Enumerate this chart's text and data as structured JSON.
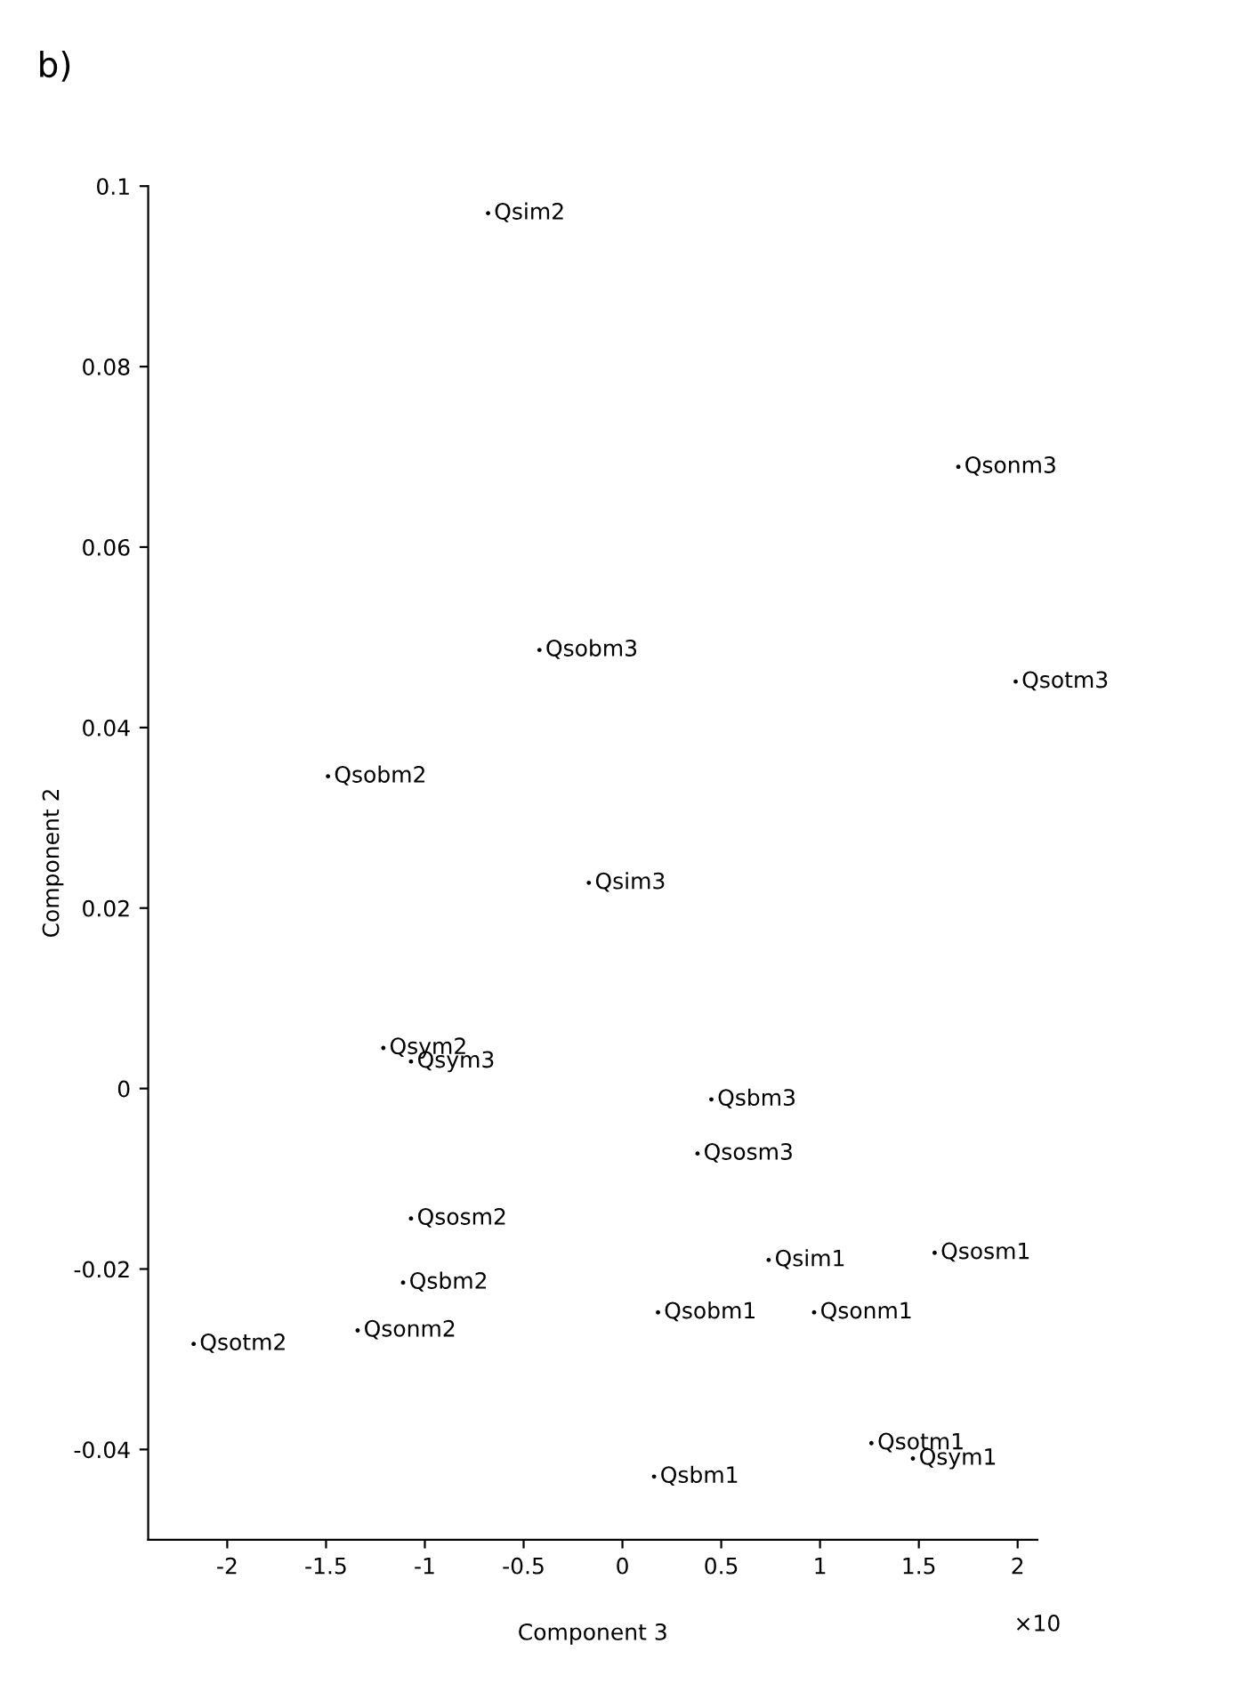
{
  "chart_data": {
    "type": "scatter",
    "title": "b)",
    "xlabel": "Component 3",
    "ylabel": "Component 2",
    "annotations": [
      "×10"
    ],
    "xlim": [
      -2.4,
      2.1
    ],
    "ylim": [
      -0.05,
      0.1
    ],
    "xticks": [
      -2,
      -1.5,
      -1,
      -0.5,
      0,
      0.5,
      1,
      1.5,
      2
    ],
    "yticks": [
      -0.04,
      -0.02,
      0,
      0.02,
      0.04,
      0.06,
      0.08,
      0.1
    ],
    "grid": false,
    "legend": false,
    "marker": "circle",
    "series": [
      {
        "color": "#000000",
        "x": [
          -0.68,
          -0.42,
          1.7,
          1.99,
          -1.49,
          -0.17,
          -1.21,
          -1.07,
          0.45,
          0.38,
          -1.07,
          -1.11,
          -1.34,
          -2.17,
          0.18,
          0.74,
          0.97,
          1.58,
          0.16,
          1.26,
          1.47
        ],
        "values": [
          0.097,
          0.0486,
          0.0689,
          0.0451,
          0.0346,
          0.0228,
          0.0045,
          0.003,
          -0.0012,
          -0.0072,
          -0.0144,
          -0.0215,
          -0.0268,
          -0.0283,
          -0.0248,
          -0.019,
          -0.0248,
          -0.0182,
          -0.043,
          -0.0393,
          -0.041
        ],
        "value_labels": [
          "Qsim2",
          "Qsobm3",
          "Qsonm3",
          "Qsotm3",
          "Qsobm2",
          "Qsim3",
          "Qsym2",
          "Qsym3",
          "Qsbm3",
          "Qsosm3",
          "Qsosm2",
          "Qsbm2",
          "Qsonm2",
          "Qsotm2",
          "Qsobm1",
          "Qsim1",
          "Qsonm1",
          "Qsosm1",
          "Qsbm1",
          "Qsotm1",
          "Qsym1"
        ]
      }
    ]
  }
}
